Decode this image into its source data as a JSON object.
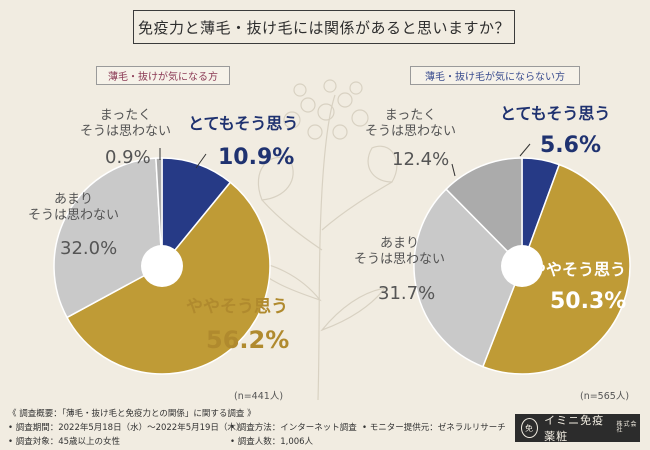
{
  "title": "免疫力と薄毛・抜け毛には関係があると思いますか？",
  "chart_data": [
    {
      "type": "pie",
      "tag": "薄毛・抜けが気になる方",
      "n_label": "(n=441人)",
      "slices": [
        {
          "name": "とてもそう思う",
          "value": 10.9,
          "display": "10.9%",
          "color": "#263a86"
        },
        {
          "name": "ややそう思う",
          "value": 56.2,
          "display": "56.2%",
          "color": "#bf9b36"
        },
        {
          "name": "あまりそうは思わない",
          "value": 32.0,
          "display": "32.0%",
          "color": "#c9c9c9"
        },
        {
          "name": "まったくそうは思わない",
          "value": 0.9,
          "display": "0.9%",
          "color": "#ababab"
        }
      ]
    },
    {
      "type": "pie",
      "tag": "薄毛・抜け毛が気にならない方",
      "n_label": "(n=565人)",
      "slices": [
        {
          "name": "とてもそう思う",
          "value": 5.6,
          "display": "5.6%",
          "color": "#263a86"
        },
        {
          "name": "ややそう思う",
          "value": 50.3,
          "display": "50.3%",
          "color": "#bf9b36"
        },
        {
          "name": "あまりそうは思わない",
          "value": 31.7,
          "display": "31.7%",
          "color": "#c9c9c9"
        },
        {
          "name": "まったくそうは思わない",
          "value": 12.4,
          "display": "12.4%",
          "color": "#ababab"
        }
      ]
    }
  ],
  "labels": {
    "left": {
      "mattaku_1": "まったく",
      "mattaku_2": "そうは思わない",
      "totemo": "とてもそう思う",
      "amari_1": "あまり",
      "amari_2": "そうは思わない",
      "yaya": "ややそう思う"
    },
    "right": {
      "mattaku_1": "まったく",
      "mattaku_2": "そうは思わない",
      "totemo": "とてもそう思う",
      "amari_1": "あまり",
      "amari_2": "そうは思わない",
      "yaya": "ややそう思う"
    }
  },
  "footer": {
    "summary": "《 調査概要：「薄毛・抜け毛と免疫力との関係」に関する調査 》",
    "period": "• 調査期間：2022年5月18日（水）～2022年5月19日（木）",
    "target": "• 調査対象：45歳以上の女性",
    "method": "• 調査方法：インターネット調査",
    "count": "• 調査人数：1,006人",
    "provider": "• モニター提供元：ゼネラルリサーチ"
  },
  "logo": {
    "mark": "免",
    "text": "イミニ免疫薬粧",
    "small": "株式会社"
  }
}
